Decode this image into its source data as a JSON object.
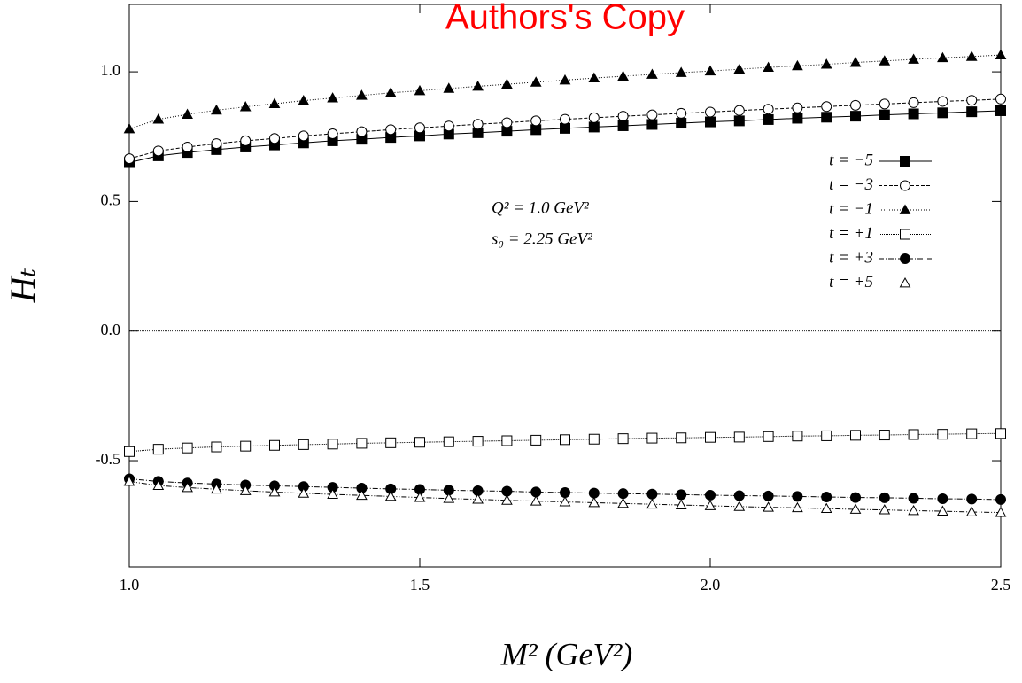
{
  "chart_data": {
    "type": "line",
    "watermark": "Authors's Copy",
    "xlabel": "M² (GeV²)",
    "ylabel": "Hₜ",
    "annotations": [
      "Q² = 1.0 GeV²",
      "s₀ = 2.25 GeV²"
    ],
    "xlim": [
      1.0,
      2.5
    ],
    "ylim": [
      -0.91,
      1.26
    ],
    "xticks": [
      {
        "value": 1.0,
        "label": "1.0"
      },
      1.5,
      {
        "value": 2.0,
        "label": "2.0"
      },
      2.5
    ],
    "yticks": [
      -0.5,
      {
        "value": 0.0,
        "label": "0.0"
      },
      0.5,
      {
        "value": 1.0,
        "label": "1.0"
      }
    ],
    "zero_line": true,
    "legend": "upper right",
    "x": [
      1,
      1.05,
      1.1,
      1.15,
      1.2,
      1.25,
      1.3,
      1.35,
      1.4,
      1.45,
      1.5,
      1.55,
      1.6,
      1.65,
      1.7,
      1.75,
      1.8,
      1.85,
      1.9,
      1.95,
      2,
      2.05,
      2.1,
      2.15,
      2.2,
      2.25,
      2.3,
      2.35,
      2.4,
      2.45,
      2.5
    ],
    "series": [
      {
        "name": "t = −5",
        "color": "#000000",
        "marker": "square-filled",
        "dash": "none",
        "values": [
          0.65,
          0.676,
          0.689,
          0.7,
          0.71,
          0.718,
          0.726,
          0.734,
          0.74,
          0.747,
          0.753,
          0.76,
          0.765,
          0.771,
          0.777,
          0.782,
          0.787,
          0.792,
          0.797,
          0.802,
          0.807,
          0.811,
          0.816,
          0.821,
          0.825,
          0.829,
          0.834,
          0.838,
          0.842,
          0.846,
          0.85
        ]
      },
      {
        "name": "t = −3",
        "color": "#000000",
        "marker": "circle-open",
        "dash": "4 2",
        "values": [
          0.665,
          0.695,
          0.71,
          0.723,
          0.734,
          0.743,
          0.753,
          0.761,
          0.769,
          0.777,
          0.784,
          0.791,
          0.798,
          0.804,
          0.811,
          0.817,
          0.823,
          0.829,
          0.834,
          0.84,
          0.845,
          0.851,
          0.856,
          0.861,
          0.866,
          0.871,
          0.876,
          0.881,
          0.886,
          0.89,
          0.895
        ]
      },
      {
        "name": "t = −1",
        "color": "#000000",
        "marker": "triangle-filled",
        "dash": "1 2",
        "values": [
          0.78,
          0.817,
          0.836,
          0.852,
          0.865,
          0.877,
          0.889,
          0.899,
          0.909,
          0.919,
          0.927,
          0.936,
          0.944,
          0.952,
          0.96,
          0.968,
          0.976,
          0.983,
          0.99,
          0.997,
          1.003,
          1.01,
          1.017,
          1.023,
          1.029,
          1.036,
          1.042,
          1.048,
          1.054,
          1.059,
          1.065
        ]
      },
      {
        "name": "t = +1",
        "color": "#000000",
        "marker": "square-open",
        "dash": "1 1",
        "values": [
          -0.465,
          -0.456,
          -0.451,
          -0.447,
          -0.444,
          -0.441,
          -0.438,
          -0.436,
          -0.433,
          -0.431,
          -0.429,
          -0.427,
          -0.425,
          -0.423,
          -0.421,
          -0.419,
          -0.417,
          -0.415,
          -0.413,
          -0.412,
          -0.41,
          -0.409,
          -0.407,
          -0.405,
          -0.404,
          -0.402,
          -0.401,
          -0.399,
          -0.398,
          -0.396,
          -0.395
        ]
      },
      {
        "name": "t = +3",
        "color": "#000000",
        "marker": "circle-filled",
        "dash": "6 2 1 2",
        "values": [
          -0.57,
          -0.58,
          -0.586,
          -0.59,
          -0.594,
          -0.597,
          -0.6,
          -0.603,
          -0.606,
          -0.609,
          -0.611,
          -0.614,
          -0.616,
          -0.618,
          -0.621,
          -0.623,
          -0.625,
          -0.627,
          -0.629,
          -0.631,
          -0.633,
          -0.635,
          -0.636,
          -0.638,
          -0.64,
          -0.642,
          -0.643,
          -0.645,
          -0.647,
          -0.648,
          -0.65
        ]
      },
      {
        "name": "t = +5",
        "color": "#000000",
        "marker": "triangle-open",
        "dash": "6 2 1 2 1 2",
        "values": [
          -0.58,
          -0.596,
          -0.604,
          -0.61,
          -0.616,
          -0.621,
          -0.626,
          -0.63,
          -0.634,
          -0.638,
          -0.642,
          -0.646,
          -0.649,
          -0.653,
          -0.656,
          -0.659,
          -0.662,
          -0.665,
          -0.668,
          -0.671,
          -0.674,
          -0.677,
          -0.68,
          -0.682,
          -0.685,
          -0.688,
          -0.69,
          -0.693,
          -0.695,
          -0.698,
          -0.7
        ]
      }
    ]
  }
}
